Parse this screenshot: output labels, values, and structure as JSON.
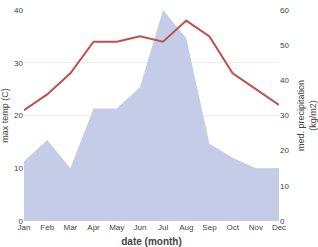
{
  "chart_data": {
    "type": "line",
    "categories": [
      "Jan",
      "Feb",
      "Mar",
      "Apr",
      "May",
      "Jun",
      "Jul",
      "Aug",
      "Sep",
      "Oct",
      "Nov",
      "Dec"
    ],
    "xlabel": "date (month)",
    "ylabel": "max temp (C)",
    "y2label": "med. precipitation\n(kg/m2)",
    "series": [
      {
        "type": "area",
        "axis": "y2",
        "color": "#c5cce8",
        "values": [
          17,
          23,
          15,
          32,
          32,
          38,
          60,
          52,
          22,
          18,
          15,
          15
        ]
      },
      {
        "type": "line",
        "color": "#c0504d",
        "values": [
          21,
          24,
          28,
          34,
          34,
          35,
          34,
          38,
          35,
          28,
          25,
          22
        ]
      }
    ],
    "ylim": [
      0,
      40
    ],
    "yticks": [
      0,
      10,
      20,
      30,
      40
    ],
    "y2lim": [
      0,
      60
    ],
    "y2ticks": [
      0,
      10,
      20,
      30,
      40,
      50,
      60
    ],
    "grid": true
  }
}
